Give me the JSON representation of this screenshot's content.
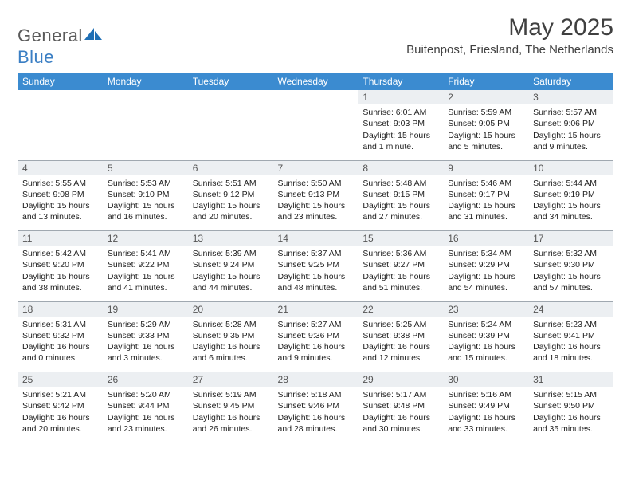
{
  "brand": {
    "part1": "General",
    "part2": "Blue"
  },
  "title": "May 2025",
  "location": "Buitenpost, Friesland, The Netherlands",
  "colors": {
    "header_bg": "#3b8bd0",
    "header_text": "#ffffff",
    "daynum_bg": "#eceff2",
    "border": "#a0a8b0",
    "logo_gray": "#5a5a5a",
    "logo_blue": "#3b7fc4",
    "text": "#222222",
    "title_color": "#404040"
  },
  "weekdays": [
    "Sunday",
    "Monday",
    "Tuesday",
    "Wednesday",
    "Thursday",
    "Friday",
    "Saturday"
  ],
  "weeks": [
    {
      "nums": [
        "",
        "",
        "",
        "",
        "1",
        "2",
        "3"
      ],
      "cells": [
        {
          "empty": true
        },
        {
          "empty": true
        },
        {
          "empty": true
        },
        {
          "empty": true
        },
        {
          "sunrise": "Sunrise: 6:01 AM",
          "sunset": "Sunset: 9:03 PM",
          "daylight": "Daylight: 15 hours and 1 minute."
        },
        {
          "sunrise": "Sunrise: 5:59 AM",
          "sunset": "Sunset: 9:05 PM",
          "daylight": "Daylight: 15 hours and 5 minutes."
        },
        {
          "sunrise": "Sunrise: 5:57 AM",
          "sunset": "Sunset: 9:06 PM",
          "daylight": "Daylight: 15 hours and 9 minutes."
        }
      ]
    },
    {
      "nums": [
        "4",
        "5",
        "6",
        "7",
        "8",
        "9",
        "10"
      ],
      "cells": [
        {
          "sunrise": "Sunrise: 5:55 AM",
          "sunset": "Sunset: 9:08 PM",
          "daylight": "Daylight: 15 hours and 13 minutes."
        },
        {
          "sunrise": "Sunrise: 5:53 AM",
          "sunset": "Sunset: 9:10 PM",
          "daylight": "Daylight: 15 hours and 16 minutes."
        },
        {
          "sunrise": "Sunrise: 5:51 AM",
          "sunset": "Sunset: 9:12 PM",
          "daylight": "Daylight: 15 hours and 20 minutes."
        },
        {
          "sunrise": "Sunrise: 5:50 AM",
          "sunset": "Sunset: 9:13 PM",
          "daylight": "Daylight: 15 hours and 23 minutes."
        },
        {
          "sunrise": "Sunrise: 5:48 AM",
          "sunset": "Sunset: 9:15 PM",
          "daylight": "Daylight: 15 hours and 27 minutes."
        },
        {
          "sunrise": "Sunrise: 5:46 AM",
          "sunset": "Sunset: 9:17 PM",
          "daylight": "Daylight: 15 hours and 31 minutes."
        },
        {
          "sunrise": "Sunrise: 5:44 AM",
          "sunset": "Sunset: 9:19 PM",
          "daylight": "Daylight: 15 hours and 34 minutes."
        }
      ]
    },
    {
      "nums": [
        "11",
        "12",
        "13",
        "14",
        "15",
        "16",
        "17"
      ],
      "cells": [
        {
          "sunrise": "Sunrise: 5:42 AM",
          "sunset": "Sunset: 9:20 PM",
          "daylight": "Daylight: 15 hours and 38 minutes."
        },
        {
          "sunrise": "Sunrise: 5:41 AM",
          "sunset": "Sunset: 9:22 PM",
          "daylight": "Daylight: 15 hours and 41 minutes."
        },
        {
          "sunrise": "Sunrise: 5:39 AM",
          "sunset": "Sunset: 9:24 PM",
          "daylight": "Daylight: 15 hours and 44 minutes."
        },
        {
          "sunrise": "Sunrise: 5:37 AM",
          "sunset": "Sunset: 9:25 PM",
          "daylight": "Daylight: 15 hours and 48 minutes."
        },
        {
          "sunrise": "Sunrise: 5:36 AM",
          "sunset": "Sunset: 9:27 PM",
          "daylight": "Daylight: 15 hours and 51 minutes."
        },
        {
          "sunrise": "Sunrise: 5:34 AM",
          "sunset": "Sunset: 9:29 PM",
          "daylight": "Daylight: 15 hours and 54 minutes."
        },
        {
          "sunrise": "Sunrise: 5:32 AM",
          "sunset": "Sunset: 9:30 PM",
          "daylight": "Daylight: 15 hours and 57 minutes."
        }
      ]
    },
    {
      "nums": [
        "18",
        "19",
        "20",
        "21",
        "22",
        "23",
        "24"
      ],
      "cells": [
        {
          "sunrise": "Sunrise: 5:31 AM",
          "sunset": "Sunset: 9:32 PM",
          "daylight": "Daylight: 16 hours and 0 minutes."
        },
        {
          "sunrise": "Sunrise: 5:29 AM",
          "sunset": "Sunset: 9:33 PM",
          "daylight": "Daylight: 16 hours and 3 minutes."
        },
        {
          "sunrise": "Sunrise: 5:28 AM",
          "sunset": "Sunset: 9:35 PM",
          "daylight": "Daylight: 16 hours and 6 minutes."
        },
        {
          "sunrise": "Sunrise: 5:27 AM",
          "sunset": "Sunset: 9:36 PM",
          "daylight": "Daylight: 16 hours and 9 minutes."
        },
        {
          "sunrise": "Sunrise: 5:25 AM",
          "sunset": "Sunset: 9:38 PM",
          "daylight": "Daylight: 16 hours and 12 minutes."
        },
        {
          "sunrise": "Sunrise: 5:24 AM",
          "sunset": "Sunset: 9:39 PM",
          "daylight": "Daylight: 16 hours and 15 minutes."
        },
        {
          "sunrise": "Sunrise: 5:23 AM",
          "sunset": "Sunset: 9:41 PM",
          "daylight": "Daylight: 16 hours and 18 minutes."
        }
      ]
    },
    {
      "nums": [
        "25",
        "26",
        "27",
        "28",
        "29",
        "30",
        "31"
      ],
      "cells": [
        {
          "sunrise": "Sunrise: 5:21 AM",
          "sunset": "Sunset: 9:42 PM",
          "daylight": "Daylight: 16 hours and 20 minutes."
        },
        {
          "sunrise": "Sunrise: 5:20 AM",
          "sunset": "Sunset: 9:44 PM",
          "daylight": "Daylight: 16 hours and 23 minutes."
        },
        {
          "sunrise": "Sunrise: 5:19 AM",
          "sunset": "Sunset: 9:45 PM",
          "daylight": "Daylight: 16 hours and 26 minutes."
        },
        {
          "sunrise": "Sunrise: 5:18 AM",
          "sunset": "Sunset: 9:46 PM",
          "daylight": "Daylight: 16 hours and 28 minutes."
        },
        {
          "sunrise": "Sunrise: 5:17 AM",
          "sunset": "Sunset: 9:48 PM",
          "daylight": "Daylight: 16 hours and 30 minutes."
        },
        {
          "sunrise": "Sunrise: 5:16 AM",
          "sunset": "Sunset: 9:49 PM",
          "daylight": "Daylight: 16 hours and 33 minutes."
        },
        {
          "sunrise": "Sunrise: 5:15 AM",
          "sunset": "Sunset: 9:50 PM",
          "daylight": "Daylight: 16 hours and 35 minutes."
        }
      ]
    }
  ]
}
